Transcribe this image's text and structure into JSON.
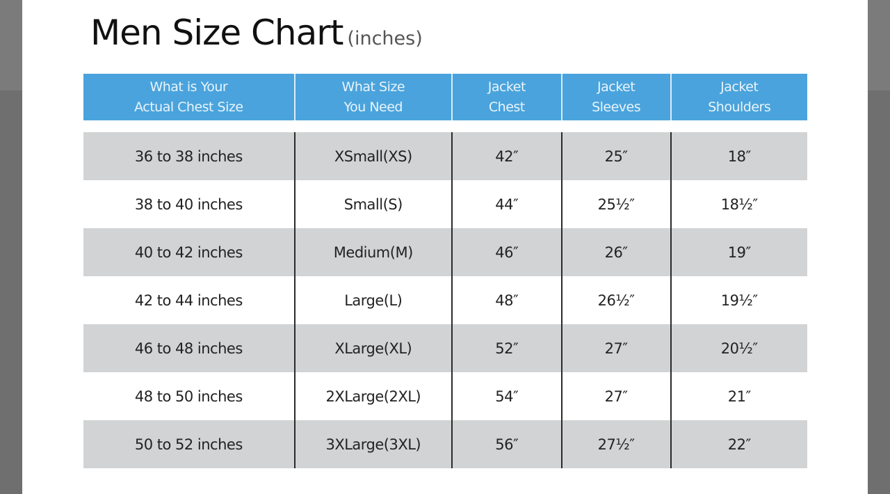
{
  "title": "Men Size Chart",
  "title_unit": "(inches)",
  "colors": {
    "header": "#4aa3dc",
    "row_alt": "#d1d3d4"
  },
  "headers": [
    "What is Your\nActual Chest Size",
    "What Size\nYou Need",
    "Jacket\nChest",
    "Jacket\nSleeves",
    "Jacket\nShoulders"
  ],
  "rows": [
    [
      "36 to 38 inches",
      "XSmall(XS)",
      "42″",
      "25″",
      "18″"
    ],
    [
      "38 to 40 inches",
      "Small(S)",
      "44″",
      "25½″",
      "18½″"
    ],
    [
      "40 to 42 inches",
      "Medium(M)",
      "46″",
      "26″",
      "19″"
    ],
    [
      "42 to 44 inches",
      "Large(L)",
      "48″",
      "26½″",
      "19½″"
    ],
    [
      "46 to 48 inches",
      "XLarge(XL)",
      "52″",
      "27″",
      "20½″"
    ],
    [
      "48 to 50 inches",
      "2XLarge(2XL)",
      "54″",
      "27″",
      "21″"
    ],
    [
      "50 to 52 inches",
      "3XLarge(3XL)",
      "56″",
      "27½″",
      "22″"
    ]
  ]
}
